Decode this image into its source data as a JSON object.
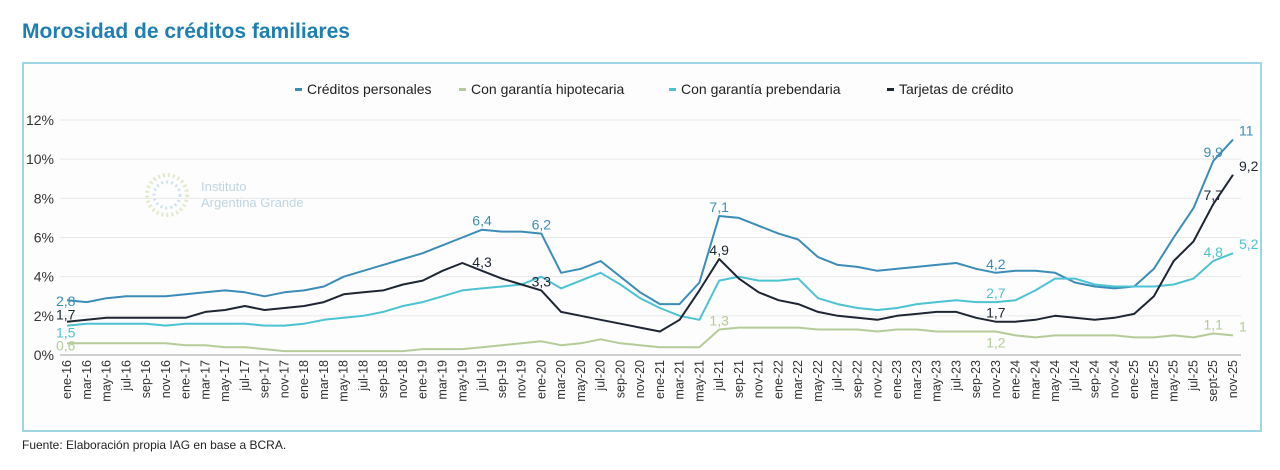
{
  "title": "Morosidad de créditos familiares",
  "footer": "Fuente: Elaboración propia IAG en base a BCRA.",
  "watermark": {
    "line1": "Instituto",
    "line2": "Argentina Grande"
  },
  "chart_data": {
    "type": "line",
    "title": "",
    "xlabel": "",
    "ylabel": "",
    "ylim": [
      0,
      12
    ],
    "yticks": [
      "0%",
      "2%",
      "4%",
      "6%",
      "8%",
      "10%",
      "12%"
    ],
    "grid": true,
    "legend": "top-center",
    "categories": [
      "ene-16",
      "mar-16",
      "may-16",
      "jul-16",
      "sep-16",
      "nov-16",
      "ene-17",
      "mar-17",
      "may-17",
      "jul-17",
      "sep-17",
      "nov-17",
      "ene-18",
      "mar-18",
      "may-18",
      "jul-18",
      "sep-18",
      "nov-18",
      "ene-19",
      "mar-19",
      "may-19",
      "jul-19",
      "sep-19",
      "nov-19",
      "ene-20",
      "mar-20",
      "may-20",
      "jul-20",
      "sep-20",
      "nov-20",
      "ene-21",
      "mar-21",
      "may-21",
      "jul-21",
      "sep-21",
      "nov-21",
      "ene-22",
      "mar-22",
      "may-22",
      "jul-22",
      "sep-22",
      "nov-22",
      "ene-23",
      "mar-23",
      "may-23",
      "jul-23",
      "sep-23",
      "nov-23",
      "ene-24",
      "mar-24",
      "may-24",
      "jul-24",
      "sep-24",
      "nov-24",
      "ene-25",
      "mar-25",
      "may-25",
      "jul-25",
      "sept-25",
      "nov-25"
    ],
    "series": [
      {
        "name": "Créditos personales",
        "color": "#3b8db8",
        "values": [
          2.8,
          2.7,
          2.9,
          3.0,
          3.0,
          3.0,
          3.1,
          3.2,
          3.3,
          3.2,
          3.0,
          3.2,
          3.3,
          3.5,
          4.0,
          4.3,
          4.6,
          4.9,
          5.2,
          5.6,
          6.0,
          6.4,
          6.3,
          6.3,
          6.2,
          4.2,
          4.4,
          4.8,
          4.0,
          3.2,
          2.6,
          2.6,
          3.7,
          7.1,
          7.0,
          6.6,
          6.2,
          5.9,
          5.0,
          4.6,
          4.5,
          4.3,
          4.4,
          4.5,
          4.6,
          4.7,
          4.4,
          4.2,
          4.3,
          4.3,
          4.2,
          3.7,
          3.5,
          3.4,
          3.5,
          4.4,
          6.0,
          7.5,
          9.9,
          11
        ],
        "labels": [
          {
            "i": 0,
            "text": "2,8"
          },
          {
            "i": 21,
            "text": "6,4"
          },
          {
            "i": 24,
            "text": "6,2"
          },
          {
            "i": 33,
            "text": "7,1"
          },
          {
            "i": 47,
            "text": "4,2"
          },
          {
            "i": 58,
            "text": "9,9"
          },
          {
            "i": 59,
            "text": "11"
          }
        ]
      },
      {
        "name": "Con garantía hipotecaria",
        "color": "#b5cc98",
        "values": [
          0.6,
          0.6,
          0.6,
          0.6,
          0.6,
          0.6,
          0.5,
          0.5,
          0.4,
          0.4,
          0.3,
          0.2,
          0.2,
          0.2,
          0.2,
          0.2,
          0.2,
          0.2,
          0.3,
          0.3,
          0.3,
          0.4,
          0.5,
          0.6,
          0.7,
          0.5,
          0.6,
          0.8,
          0.6,
          0.5,
          0.4,
          0.4,
          0.4,
          1.3,
          1.4,
          1.4,
          1.4,
          1.4,
          1.3,
          1.3,
          1.3,
          1.2,
          1.3,
          1.3,
          1.2,
          1.2,
          1.2,
          1.2,
          1.0,
          0.9,
          1.0,
          1.0,
          1.0,
          1.0,
          0.9,
          0.9,
          1.0,
          0.9,
          1.1,
          1.0
        ],
        "labels": [
          {
            "i": 0,
            "text": "0,6"
          },
          {
            "i": 33,
            "text": "1,3"
          },
          {
            "i": 47,
            "text": "1,2"
          },
          {
            "i": 58,
            "text": "1,1"
          },
          {
            "i": 59,
            "text": "1"
          }
        ]
      },
      {
        "name": "Con garantía prebendaria",
        "color": "#4cc3d2",
        "values": [
          1.5,
          1.6,
          1.6,
          1.6,
          1.6,
          1.5,
          1.6,
          1.6,
          1.6,
          1.6,
          1.5,
          1.5,
          1.6,
          1.8,
          1.9,
          2.0,
          2.2,
          2.5,
          2.7,
          3.0,
          3.3,
          3.4,
          3.5,
          3.6,
          4.0,
          3.4,
          3.8,
          4.2,
          3.6,
          2.9,
          2.4,
          2.0,
          1.8,
          3.8,
          4.0,
          3.8,
          3.8,
          3.9,
          2.9,
          2.6,
          2.4,
          2.3,
          2.4,
          2.6,
          2.7,
          2.8,
          2.7,
          2.7,
          2.8,
          3.3,
          3.9,
          3.9,
          3.6,
          3.5,
          3.5,
          3.5,
          3.6,
          3.9,
          4.8,
          5.2
        ],
        "labels": [
          {
            "i": 0,
            "text": "1,5"
          },
          {
            "i": 47,
            "text": "2,7"
          },
          {
            "i": 58,
            "text": "4,8"
          },
          {
            "i": 59,
            "text": "5,2"
          }
        ]
      },
      {
        "name": "Tarjetas de crédito",
        "color": "#1e2633",
        "values": [
          1.7,
          1.8,
          1.9,
          1.9,
          1.9,
          1.9,
          1.9,
          2.2,
          2.3,
          2.5,
          2.3,
          2.4,
          2.5,
          2.7,
          3.1,
          3.2,
          3.3,
          3.6,
          3.8,
          4.3,
          4.7,
          4.3,
          3.9,
          3.6,
          3.3,
          2.2,
          2.0,
          1.8,
          1.6,
          1.4,
          1.2,
          1.8,
          3.3,
          4.9,
          3.9,
          3.2,
          2.8,
          2.6,
          2.2,
          2.0,
          1.9,
          1.8,
          2.0,
          2.1,
          2.2,
          2.2,
          1.9,
          1.7,
          1.7,
          1.8,
          2.0,
          1.9,
          1.8,
          1.9,
          2.1,
          3.0,
          4.8,
          5.8,
          7.7,
          9.2
        ],
        "labels": [
          {
            "i": 0,
            "text": "1,7"
          },
          {
            "i": 21,
            "text": "4,3"
          },
          {
            "i": 24,
            "text": "3,3"
          },
          {
            "i": 33,
            "text": "4,9"
          },
          {
            "i": 47,
            "text": "1,7"
          },
          {
            "i": 58,
            "text": "7,7"
          },
          {
            "i": 59,
            "text": "9,2"
          }
        ]
      }
    ]
  }
}
